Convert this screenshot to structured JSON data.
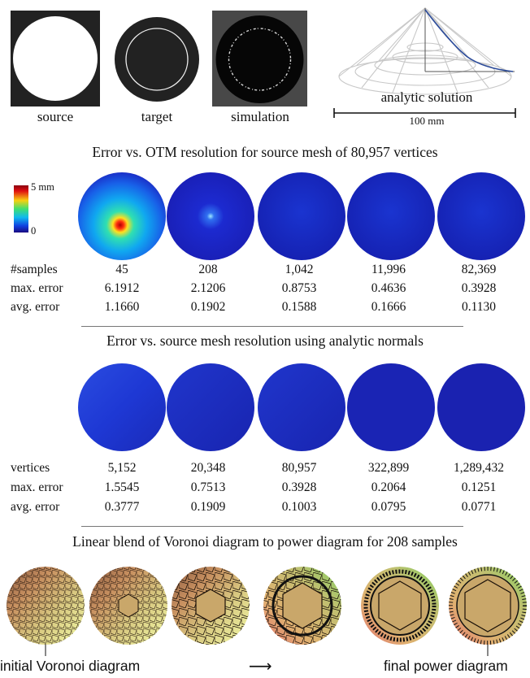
{
  "top_panels": {
    "labels": [
      "source",
      "target",
      "simulation",
      "analytic solution"
    ],
    "scale_bar": "100 mm"
  },
  "section1": {
    "title": "Error vs. OTM resolution for source mesh of 80,957 vertices",
    "colorbar": {
      "max_label": "5 mm",
      "min_label": "0"
    },
    "rows": [
      {
        "label": "#samples",
        "values": [
          "45",
          "208",
          "1,042",
          "11,996",
          "82,369"
        ]
      },
      {
        "label": "max. error",
        "values": [
          "6.1912",
          "2.1206",
          "0.8753",
          "0.4636",
          "0.3928"
        ]
      },
      {
        "label": "avg. error",
        "values": [
          "1.1660",
          "0.1902",
          "0.1588",
          "0.1666",
          "0.1130"
        ]
      }
    ]
  },
  "section2": {
    "title": "Error vs. source mesh resolution using analytic normals",
    "rows": [
      {
        "label": "vertices",
        "values": [
          "5,152",
          "20,348",
          "80,957",
          "322,899",
          "1,289,432"
        ]
      },
      {
        "label": "max. error",
        "values": [
          "1.5545",
          "0.7513",
          "0.3928",
          "0.2064",
          "0.1251"
        ]
      },
      {
        "label": "avg. error",
        "values": [
          "0.3777",
          "0.1909",
          "0.1003",
          "0.0795",
          "0.0771"
        ]
      }
    ]
  },
  "section3": {
    "title": "Linear blend of Voronoi diagram to power diagram for 208 samples",
    "start_label": "initial Voronoi diagram",
    "end_label": "final power diagram",
    "arrow_glyph": "⟶"
  },
  "colors": {
    "error_low": "#1a24b8",
    "error_high": "#d0101a",
    "panel_dark": "#2a2a2a",
    "diagram_gold": "#c9a76a"
  }
}
